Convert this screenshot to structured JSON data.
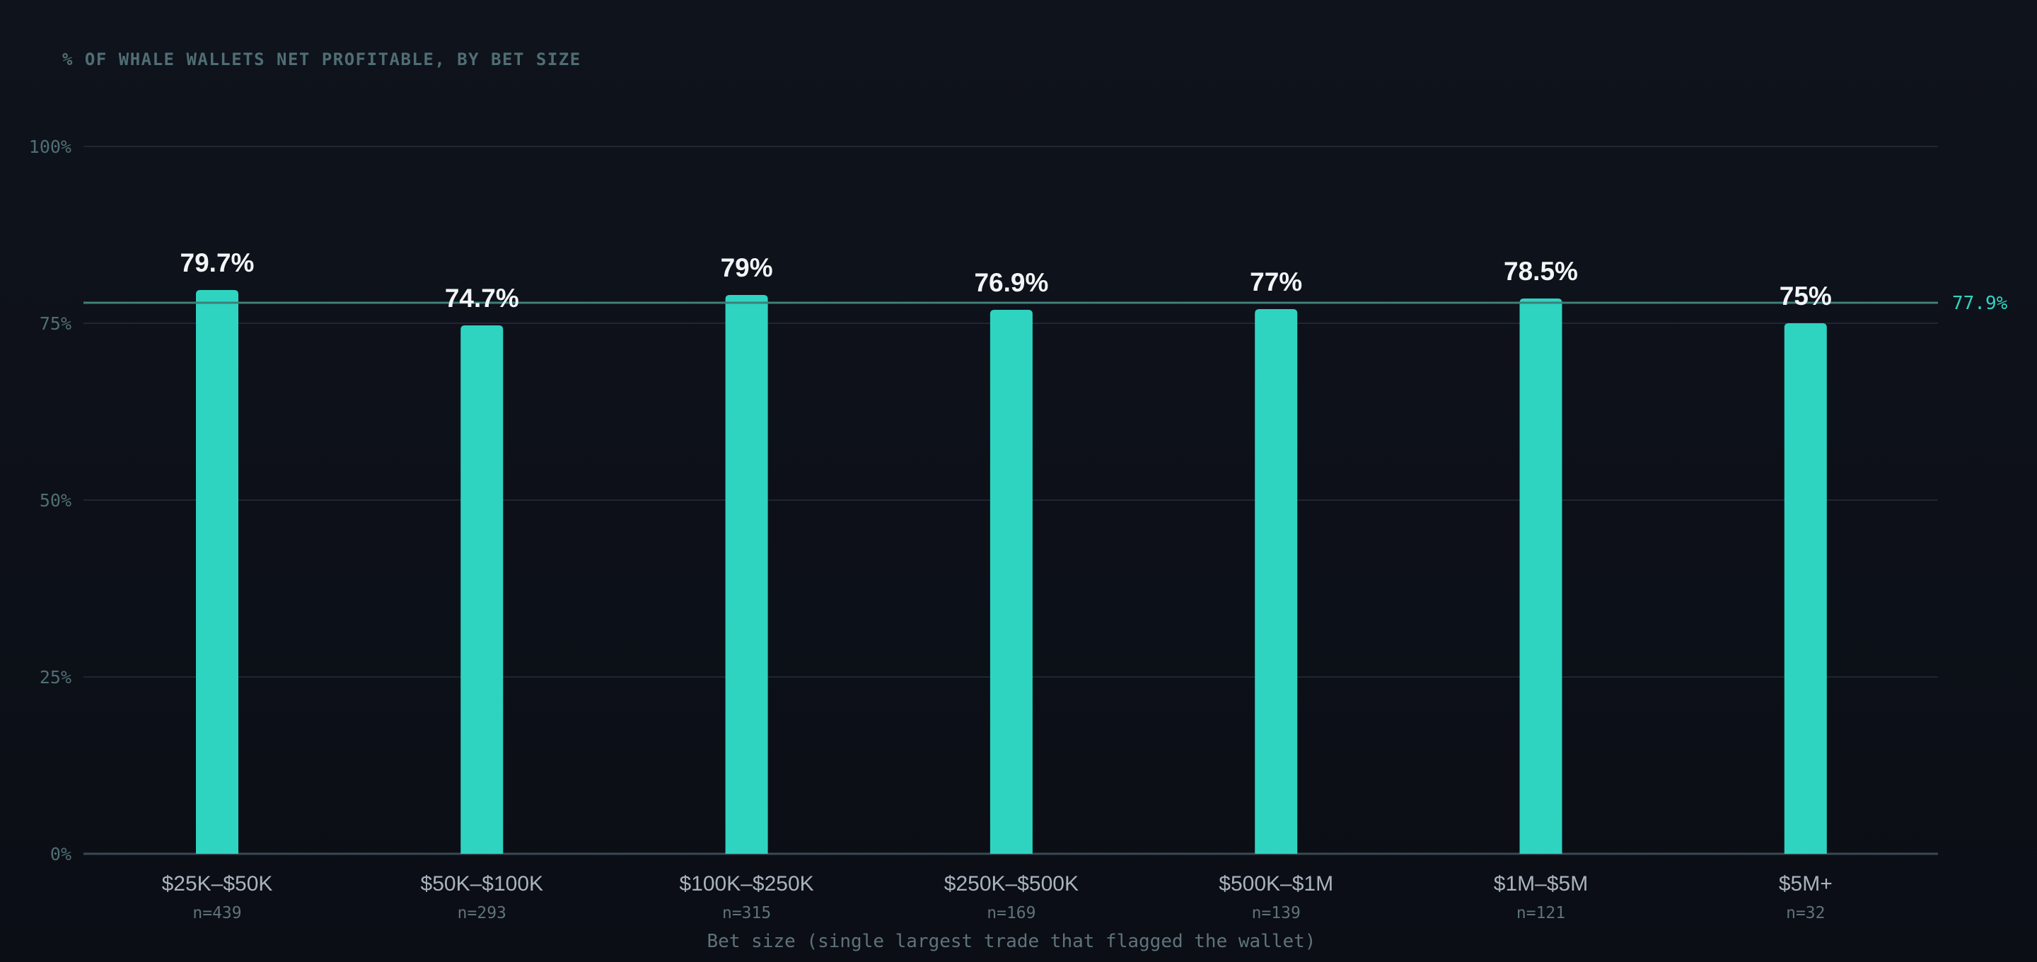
{
  "chart_data": {
    "type": "bar",
    "title": "% OF WHALE WALLETS NET PROFITABLE, BY BET SIZE",
    "xlabel": "Bet size (single largest trade that flagged the wallet)",
    "ylabel": "",
    "ylim": [
      0,
      100
    ],
    "yticks": [
      0,
      25,
      50,
      75,
      100
    ],
    "ytick_labels": [
      "0%",
      "25%",
      "50%",
      "75%",
      "100%"
    ],
    "grid": true,
    "categories": [
      "$25K–$50K",
      "$50K–$100K",
      "$100K–$250K",
      "$250K–$500K",
      "$500K–$1M",
      "$1M–$5M",
      "$5M+"
    ],
    "values": [
      79.7,
      74.7,
      79,
      76.9,
      77,
      78.5,
      75
    ],
    "value_labels": [
      "79.7%",
      "74.7%",
      "79%",
      "76.9%",
      "77%",
      "78.5%",
      "75%"
    ],
    "counts": [
      "n=439",
      "n=293",
      "n=315",
      "n=169",
      "n=139",
      "n=121",
      "n=32"
    ],
    "reference_line": {
      "value": 77.9,
      "label": "77.9%"
    },
    "colors": {
      "bar": "#2fd4c1",
      "reference": "#2fd4c1",
      "reference_line": "#3f7f78",
      "grid": "#1f2632",
      "axis": "#3a4a55",
      "title": "#4f6e74",
      "tick": "#4f6e74",
      "value_label": "#f2f5f7",
      "category": "#a9b4be",
      "count": "#5f7379",
      "xlabel": "#5f7379"
    }
  }
}
